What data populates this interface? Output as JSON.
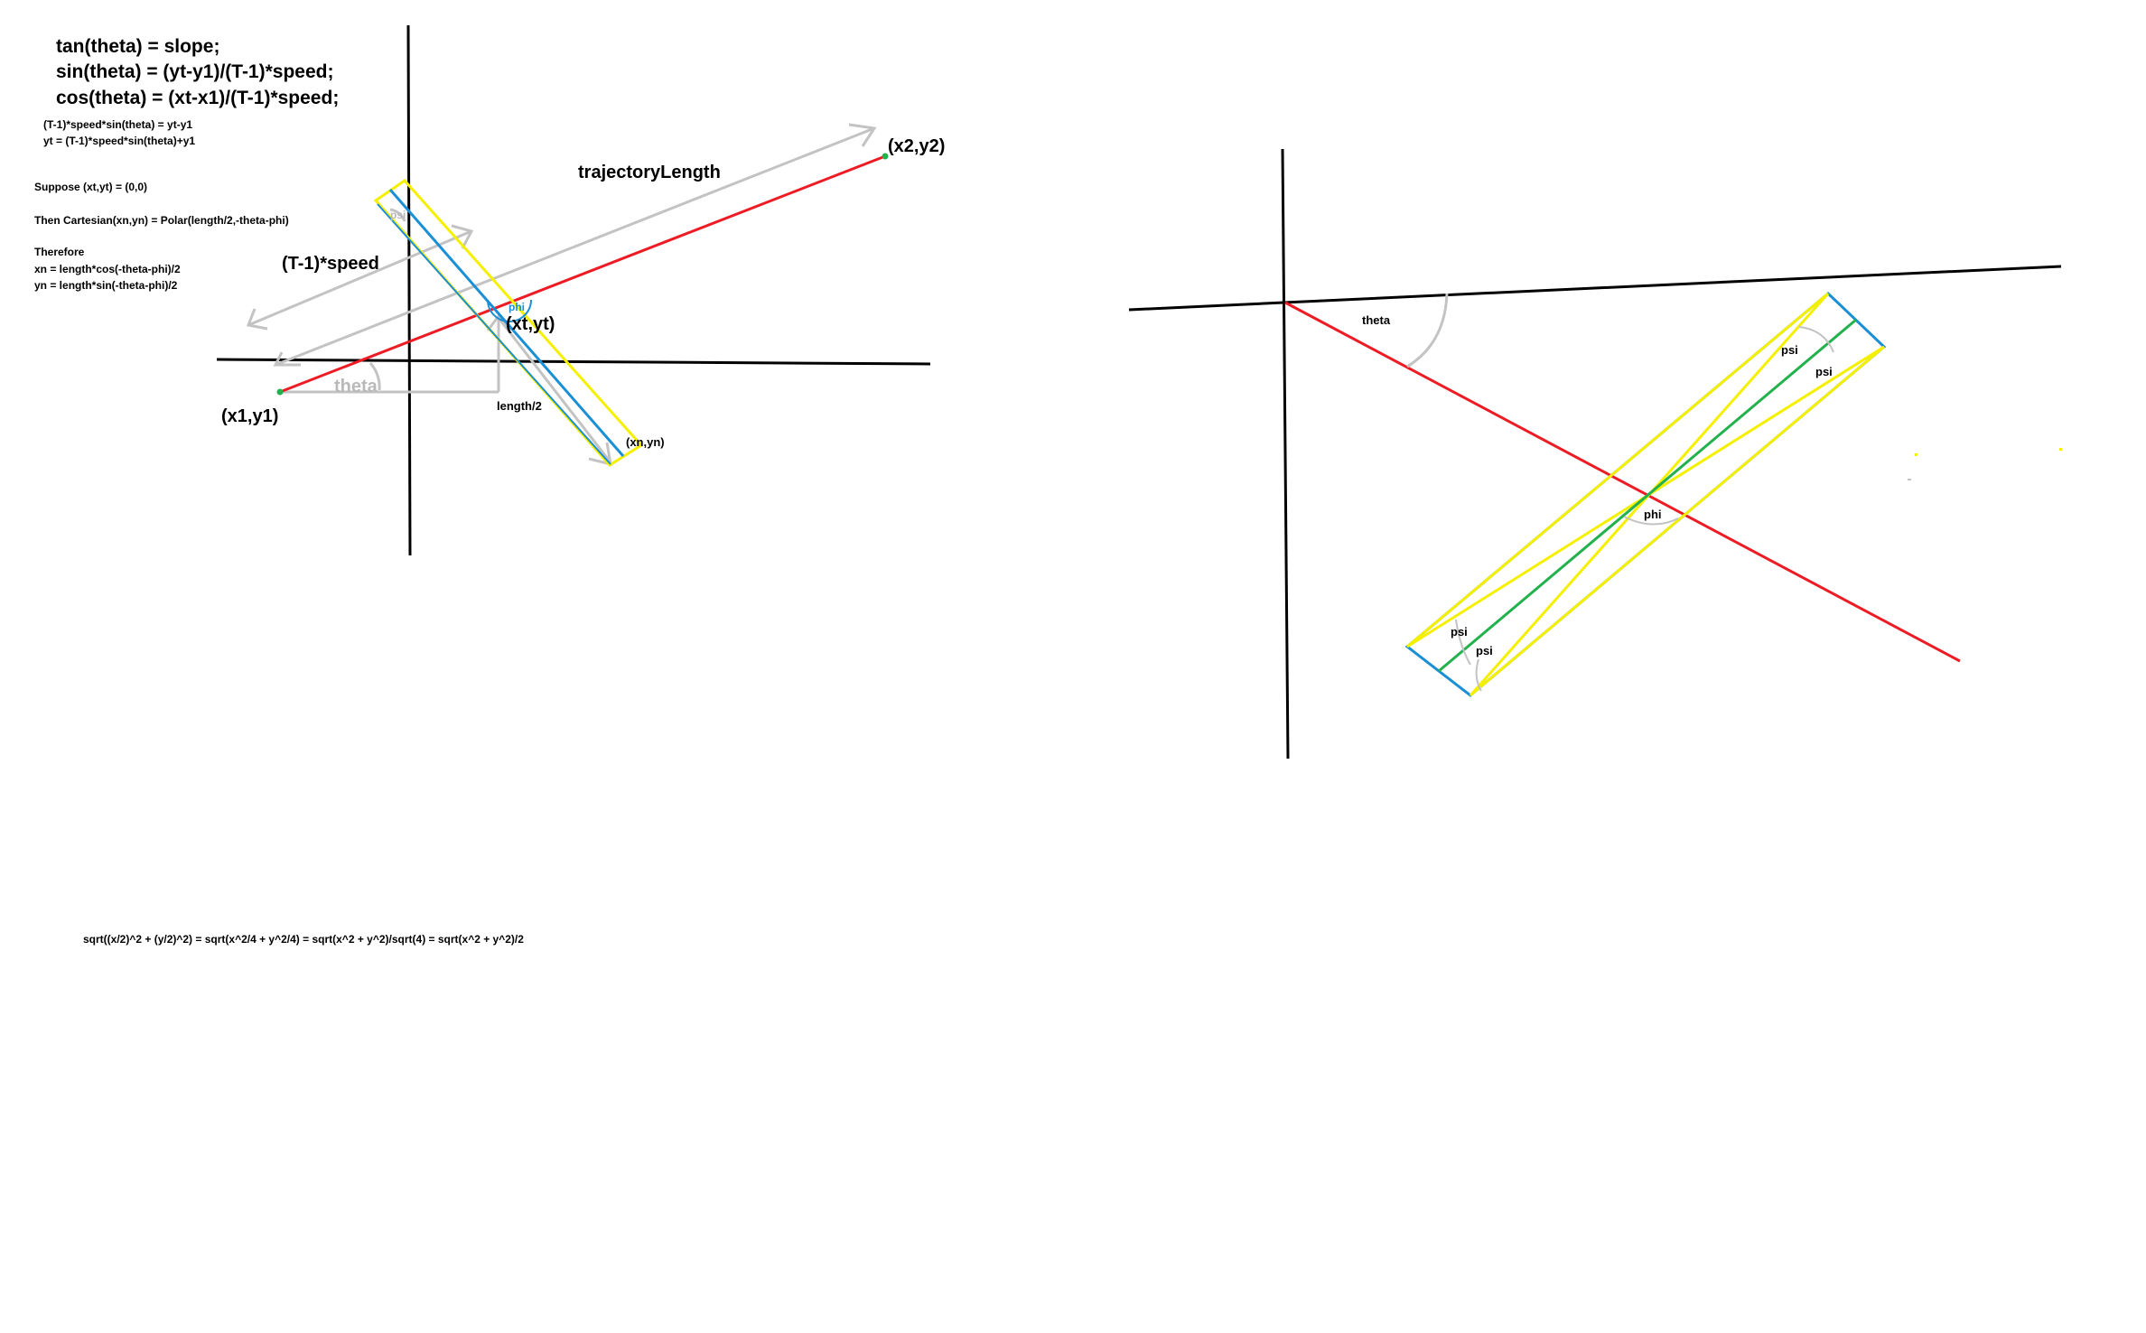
{
  "left_notes": {
    "line1": "tan(theta) = slope;",
    "line2": "sin(theta) = (yt-y1)/(T-1)*speed;",
    "line3": "cos(theta) = (xt-x1)/(T-1)*speed;",
    "line4": "(T-1)*speed*sin(theta) = yt-y1",
    "line5": "yt = (T-1)*speed*sin(theta)+y1",
    "suppose": "Suppose (xt,yt) = (0,0)",
    "then": "Then Cartesian(xn,yn) = Polar(length/2,-theta-phi)",
    "therefore": "Therefore",
    "xn": "xn = length*cos(-theta-phi)/2",
    "yn": "yn = length*sin(-theta-phi)/2"
  },
  "left_diagram": {
    "trajectory_label": "trajectoryLength",
    "speed_label": "(T-1)*speed",
    "theta_label": "theta",
    "p1_label": "(x1,y1)",
    "p2_label": "(x2,y2)",
    "pt_label": "(xt,yt)",
    "pn_label": "(xn,yn)",
    "length_half_label": "length/2",
    "phi_label": "phi",
    "psi_label": "psi"
  },
  "right_diagram": {
    "theta_label": "theta",
    "phi_label": "phi",
    "psi_label": "psi"
  },
  "bottom_formula": "sqrt((x/2)^2 + (y/2)^2) = sqrt(x^2/4 + y^2/4) = sqrt(x^2 + y^2)/sqrt(4) = sqrt(x^2 + y^2)/2",
  "colors": {
    "axis": "#000000",
    "trajectory": "#ed1c24",
    "blue_rect": "#1a8fd6",
    "yellow_rect": "#f5f000",
    "green_line": "#22b14c",
    "gray_arrows": "#c3c3c3"
  }
}
